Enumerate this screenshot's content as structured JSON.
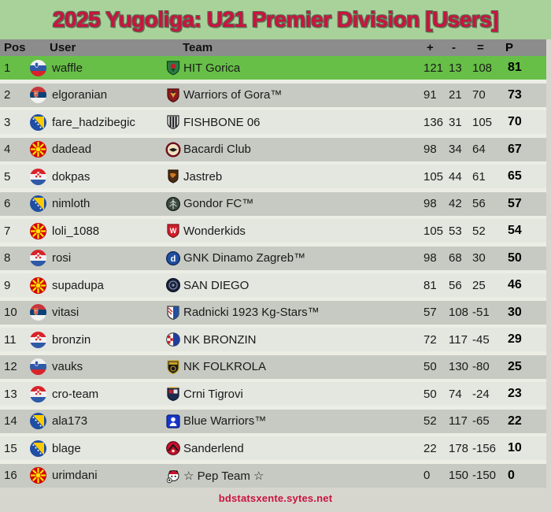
{
  "title": "2025 Yugoliga: U21 Premier Division [Users]",
  "footer": {
    "url_text": "bdstatsxente.sytes.net"
  },
  "colors": {
    "title_bg": "#a9d29a",
    "title_text": "#cb123f",
    "header_bg": "#8c8c8c",
    "leader_row": "#67bf47",
    "row_dark": "#c7cac2",
    "row_light": "#e4e6e0",
    "page_bg": "#d6d6ce",
    "gap": "#eceee6",
    "footer_text": "#cb123f"
  },
  "table": {
    "columns": {
      "pos": "Pos",
      "user": "User",
      "team": "Team",
      "plus": "+",
      "minus": "-",
      "equals": "=",
      "points": "P"
    },
    "rows": [
      {
        "pos": 1,
        "user": "waffle",
        "flag_icon": "flag-slovenia-icon",
        "team": "HIT Gorica",
        "logo_icon": "logo-hit-gorica-icon",
        "plus": 121,
        "minus": 13,
        "diff": 108,
        "points": 81,
        "highlight": "leader"
      },
      {
        "pos": 2,
        "user": "elgoranian",
        "flag_icon": "flag-serbia-icon",
        "team": "Warriors of Gora™",
        "logo_icon": "logo-warriors-gora-icon",
        "plus": 91,
        "minus": 21,
        "diff": 70,
        "points": 73
      },
      {
        "pos": 3,
        "user": "fare_hadzibegic",
        "flag_icon": "flag-bosnia-icon",
        "team": "FISHBONE 06",
        "logo_icon": "logo-fishbone-icon",
        "plus": 136,
        "minus": 31,
        "diff": 105,
        "points": 70
      },
      {
        "pos": 4,
        "user": "dadead",
        "flag_icon": "flag-macedonia-icon",
        "team": "Bacardi Club",
        "logo_icon": "logo-bacardi-icon",
        "plus": 98,
        "minus": 34,
        "diff": 64,
        "points": 67
      },
      {
        "pos": 5,
        "user": "dokpas",
        "flag_icon": "flag-croatia-icon",
        "team": "Jastreb",
        "logo_icon": "logo-jastreb-icon",
        "plus": 105,
        "minus": 44,
        "diff": 61,
        "points": 65
      },
      {
        "pos": 6,
        "user": "nimloth",
        "flag_icon": "flag-bosnia-icon",
        "team": "Gondor FC™",
        "logo_icon": "logo-gondor-icon",
        "plus": 98,
        "minus": 42,
        "diff": 56,
        "points": 57
      },
      {
        "pos": 7,
        "user": "loli_1088",
        "flag_icon": "flag-macedonia-icon",
        "team": "Wonderkids",
        "logo_icon": "logo-wonderkids-icon",
        "plus": 105,
        "minus": 53,
        "diff": 52,
        "points": 54
      },
      {
        "pos": 8,
        "user": "rosi",
        "flag_icon": "flag-croatia-icon",
        "team": "GNK Dinamo Zagreb™",
        "logo_icon": "logo-dinamo-icon",
        "plus": 98,
        "minus": 68,
        "diff": 30,
        "points": 50
      },
      {
        "pos": 9,
        "user": "supadupa",
        "flag_icon": "flag-macedonia-icon",
        "team": "SAN DIEGO",
        "logo_icon": "logo-san-diego-icon",
        "plus": 81,
        "minus": 56,
        "diff": 25,
        "points": 46
      },
      {
        "pos": 10,
        "user": "vitasi",
        "flag_icon": "flag-serbia-icon",
        "team": "Radnicki 1923 Kg-Stars™",
        "logo_icon": "logo-radnicki-icon",
        "plus": 57,
        "minus": 108,
        "diff": -51,
        "points": 30
      },
      {
        "pos": 11,
        "user": "bronzin",
        "flag_icon": "flag-croatia-icon",
        "team": "NK BRONZIN",
        "logo_icon": "logo-bronzin-icon",
        "plus": 72,
        "minus": 117,
        "diff": -45,
        "points": 29
      },
      {
        "pos": 12,
        "user": "vauks",
        "flag_icon": "flag-slovenia-icon",
        "team": "NK FOLKROLA",
        "logo_icon": "logo-folkrola-icon",
        "plus": 50,
        "minus": 130,
        "diff": -80,
        "points": 25
      },
      {
        "pos": 13,
        "user": "cro-team",
        "flag_icon": "flag-croatia-icon",
        "team": "Crni Tigrovi",
        "logo_icon": "logo-crni-tigrovi-icon",
        "plus": 50,
        "minus": 74,
        "diff": -24,
        "points": 23
      },
      {
        "pos": 14,
        "user": "ala173",
        "flag_icon": "flag-bosnia-icon",
        "team": "Blue Warriors™",
        "logo_icon": "logo-blue-warriors-icon",
        "plus": 52,
        "minus": 117,
        "diff": -65,
        "points": 22
      },
      {
        "pos": 15,
        "user": "blage",
        "flag_icon": "flag-bosnia-icon",
        "team": "Sanderlend",
        "logo_icon": "logo-sanderlend-icon",
        "plus": 22,
        "minus": 178,
        "diff": -156,
        "points": 10
      },
      {
        "pos": 16,
        "user": "urimdani",
        "flag_icon": "flag-macedonia-icon",
        "team": "☆ Pep Team ☆",
        "logo_icon": "logo-pep-team-icon",
        "plus": 0,
        "minus": 150,
        "diff": -150,
        "points": 0
      }
    ]
  }
}
